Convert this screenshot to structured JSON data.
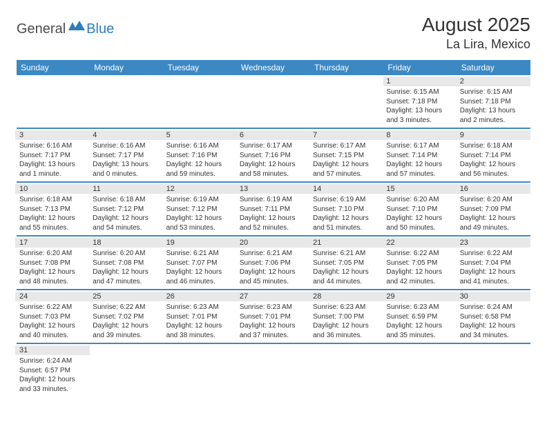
{
  "logo": {
    "text_general": "General",
    "text_blue": "Blue",
    "icon_fill": "#2d7dc0"
  },
  "header": {
    "month_title": "August 2025",
    "location": "La Lira, Mexico"
  },
  "styling": {
    "header_bg": "#3b88c3",
    "header_text": "#ffffff",
    "row_border": "#3b88c3",
    "daynum_bg": "#e8e8e8",
    "body_text": "#333333",
    "page_bg": "#ffffff",
    "title_fontsize": 28,
    "location_fontsize": 18,
    "dayheader_fontsize": 12,
    "detail_fontsize": 10
  },
  "day_headers": [
    "Sunday",
    "Monday",
    "Tuesday",
    "Wednesday",
    "Thursday",
    "Friday",
    "Saturday"
  ],
  "weeks": [
    [
      null,
      null,
      null,
      null,
      null,
      {
        "num": "1",
        "sunrise": "Sunrise: 6:15 AM",
        "sunset": "Sunset: 7:18 PM",
        "daylight": "Daylight: 13 hours and 3 minutes."
      },
      {
        "num": "2",
        "sunrise": "Sunrise: 6:15 AM",
        "sunset": "Sunset: 7:18 PM",
        "daylight": "Daylight: 13 hours and 2 minutes."
      }
    ],
    [
      {
        "num": "3",
        "sunrise": "Sunrise: 6:16 AM",
        "sunset": "Sunset: 7:17 PM",
        "daylight": "Daylight: 13 hours and 1 minute."
      },
      {
        "num": "4",
        "sunrise": "Sunrise: 6:16 AM",
        "sunset": "Sunset: 7:17 PM",
        "daylight": "Daylight: 13 hours and 0 minutes."
      },
      {
        "num": "5",
        "sunrise": "Sunrise: 6:16 AM",
        "sunset": "Sunset: 7:16 PM",
        "daylight": "Daylight: 12 hours and 59 minutes."
      },
      {
        "num": "6",
        "sunrise": "Sunrise: 6:17 AM",
        "sunset": "Sunset: 7:16 PM",
        "daylight": "Daylight: 12 hours and 58 minutes."
      },
      {
        "num": "7",
        "sunrise": "Sunrise: 6:17 AM",
        "sunset": "Sunset: 7:15 PM",
        "daylight": "Daylight: 12 hours and 57 minutes."
      },
      {
        "num": "8",
        "sunrise": "Sunrise: 6:17 AM",
        "sunset": "Sunset: 7:14 PM",
        "daylight": "Daylight: 12 hours and 57 minutes."
      },
      {
        "num": "9",
        "sunrise": "Sunrise: 6:18 AM",
        "sunset": "Sunset: 7:14 PM",
        "daylight": "Daylight: 12 hours and 56 minutes."
      }
    ],
    [
      {
        "num": "10",
        "sunrise": "Sunrise: 6:18 AM",
        "sunset": "Sunset: 7:13 PM",
        "daylight": "Daylight: 12 hours and 55 minutes."
      },
      {
        "num": "11",
        "sunrise": "Sunrise: 6:18 AM",
        "sunset": "Sunset: 7:12 PM",
        "daylight": "Daylight: 12 hours and 54 minutes."
      },
      {
        "num": "12",
        "sunrise": "Sunrise: 6:19 AM",
        "sunset": "Sunset: 7:12 PM",
        "daylight": "Daylight: 12 hours and 53 minutes."
      },
      {
        "num": "13",
        "sunrise": "Sunrise: 6:19 AM",
        "sunset": "Sunset: 7:11 PM",
        "daylight": "Daylight: 12 hours and 52 minutes."
      },
      {
        "num": "14",
        "sunrise": "Sunrise: 6:19 AM",
        "sunset": "Sunset: 7:10 PM",
        "daylight": "Daylight: 12 hours and 51 minutes."
      },
      {
        "num": "15",
        "sunrise": "Sunrise: 6:20 AM",
        "sunset": "Sunset: 7:10 PM",
        "daylight": "Daylight: 12 hours and 50 minutes."
      },
      {
        "num": "16",
        "sunrise": "Sunrise: 6:20 AM",
        "sunset": "Sunset: 7:09 PM",
        "daylight": "Daylight: 12 hours and 49 minutes."
      }
    ],
    [
      {
        "num": "17",
        "sunrise": "Sunrise: 6:20 AM",
        "sunset": "Sunset: 7:08 PM",
        "daylight": "Daylight: 12 hours and 48 minutes."
      },
      {
        "num": "18",
        "sunrise": "Sunrise: 6:20 AM",
        "sunset": "Sunset: 7:08 PM",
        "daylight": "Daylight: 12 hours and 47 minutes."
      },
      {
        "num": "19",
        "sunrise": "Sunrise: 6:21 AM",
        "sunset": "Sunset: 7:07 PM",
        "daylight": "Daylight: 12 hours and 46 minutes."
      },
      {
        "num": "20",
        "sunrise": "Sunrise: 6:21 AM",
        "sunset": "Sunset: 7:06 PM",
        "daylight": "Daylight: 12 hours and 45 minutes."
      },
      {
        "num": "21",
        "sunrise": "Sunrise: 6:21 AM",
        "sunset": "Sunset: 7:05 PM",
        "daylight": "Daylight: 12 hours and 44 minutes."
      },
      {
        "num": "22",
        "sunrise": "Sunrise: 6:22 AM",
        "sunset": "Sunset: 7:05 PM",
        "daylight": "Daylight: 12 hours and 42 minutes."
      },
      {
        "num": "23",
        "sunrise": "Sunrise: 6:22 AM",
        "sunset": "Sunset: 7:04 PM",
        "daylight": "Daylight: 12 hours and 41 minutes."
      }
    ],
    [
      {
        "num": "24",
        "sunrise": "Sunrise: 6:22 AM",
        "sunset": "Sunset: 7:03 PM",
        "daylight": "Daylight: 12 hours and 40 minutes."
      },
      {
        "num": "25",
        "sunrise": "Sunrise: 6:22 AM",
        "sunset": "Sunset: 7:02 PM",
        "daylight": "Daylight: 12 hours and 39 minutes."
      },
      {
        "num": "26",
        "sunrise": "Sunrise: 6:23 AM",
        "sunset": "Sunset: 7:01 PM",
        "daylight": "Daylight: 12 hours and 38 minutes."
      },
      {
        "num": "27",
        "sunrise": "Sunrise: 6:23 AM",
        "sunset": "Sunset: 7:01 PM",
        "daylight": "Daylight: 12 hours and 37 minutes."
      },
      {
        "num": "28",
        "sunrise": "Sunrise: 6:23 AM",
        "sunset": "Sunset: 7:00 PM",
        "daylight": "Daylight: 12 hours and 36 minutes."
      },
      {
        "num": "29",
        "sunrise": "Sunrise: 6:23 AM",
        "sunset": "Sunset: 6:59 PM",
        "daylight": "Daylight: 12 hours and 35 minutes."
      },
      {
        "num": "30",
        "sunrise": "Sunrise: 6:24 AM",
        "sunset": "Sunset: 6:58 PM",
        "daylight": "Daylight: 12 hours and 34 minutes."
      }
    ],
    [
      {
        "num": "31",
        "sunrise": "Sunrise: 6:24 AM",
        "sunset": "Sunset: 6:57 PM",
        "daylight": "Daylight: 12 hours and 33 minutes."
      },
      null,
      null,
      null,
      null,
      null,
      null
    ]
  ]
}
